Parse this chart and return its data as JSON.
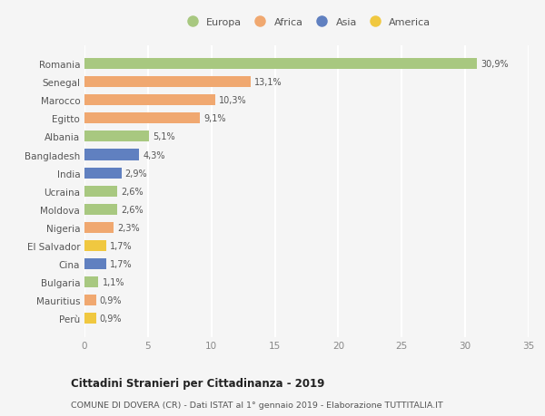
{
  "countries": [
    "Romania",
    "Senegal",
    "Marocco",
    "Egitto",
    "Albania",
    "Bangladesh",
    "India",
    "Ucraina",
    "Moldova",
    "Nigeria",
    "El Salvador",
    "Cina",
    "Bulgaria",
    "Mauritius",
    "Perù"
  ],
  "values": [
    30.9,
    13.1,
    10.3,
    9.1,
    5.1,
    4.3,
    2.9,
    2.6,
    2.6,
    2.3,
    1.7,
    1.7,
    1.1,
    0.9,
    0.9
  ],
  "labels": [
    "30,9%",
    "13,1%",
    "10,3%",
    "9,1%",
    "5,1%",
    "4,3%",
    "2,9%",
    "2,6%",
    "2,6%",
    "2,3%",
    "1,7%",
    "1,7%",
    "1,1%",
    "0,9%",
    "0,9%"
  ],
  "continents": [
    "Europa",
    "Africa",
    "Africa",
    "Africa",
    "Europa",
    "Asia",
    "Asia",
    "Europa",
    "Europa",
    "Africa",
    "America",
    "Asia",
    "Europa",
    "Africa",
    "America"
  ],
  "continent_colors": {
    "Europa": "#a8c880",
    "Africa": "#f0a870",
    "Asia": "#6080c0",
    "America": "#f0c840"
  },
  "legend_order": [
    "Europa",
    "Africa",
    "Asia",
    "America"
  ],
  "title": "Cittadini Stranieri per Cittadinanza - 2019",
  "subtitle": "COMUNE DI DOVERA (CR) - Dati ISTAT al 1° gennaio 2019 - Elaborazione TUTTITALIA.IT",
  "xlim": [
    0,
    35
  ],
  "xticks": [
    0,
    5,
    10,
    15,
    20,
    25,
    30,
    35
  ],
  "background_color": "#f5f5f5",
  "grid_color": "#ffffff",
  "bar_height": 0.6
}
